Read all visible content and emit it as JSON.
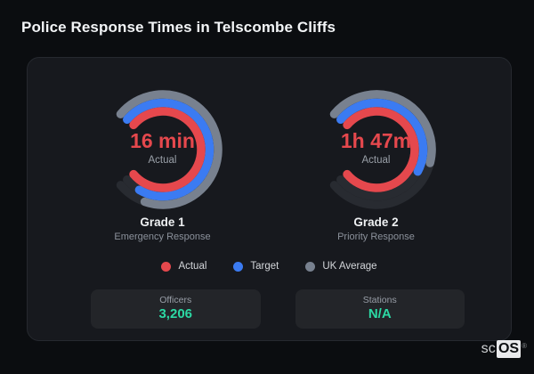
{
  "title": "Police Response Times in Telscombe Cliffs",
  "colors": {
    "page_bg": "#0b0d10",
    "card_bg": "#17191e",
    "track": "#282b31",
    "actual_red": "#e5484d",
    "target_blue": "#3b7bf2",
    "uk_avg_gray": "#78818f",
    "stat_teal": "#2cd9a4"
  },
  "chart_data": [
    {
      "type": "gauge",
      "label": "Grade 1",
      "sublabel": "Emergency Response",
      "center_value": "16 min",
      "center_caption": "Actual",
      "start_bearing_deg": -50,
      "range_deg": 280,
      "series": [
        {
          "name": "Actual",
          "color": "#e5484d",
          "fraction": 1.0,
          "radius": 43
        },
        {
          "name": "Target",
          "color": "#3b7bf2",
          "fraction": 0.93,
          "radius": 52.5
        },
        {
          "name": "UK Average",
          "color": "#78818f",
          "fraction": 0.89,
          "radius": 62
        }
      ]
    },
    {
      "type": "gauge",
      "label": "Grade 2",
      "sublabel": "Priority Response",
      "center_value": "1h 47m",
      "center_caption": "Actual",
      "start_bearing_deg": -50,
      "range_deg": 280,
      "series": [
        {
          "name": "Actual",
          "color": "#e5484d",
          "fraction": 1.0,
          "radius": 43
        },
        {
          "name": "Target",
          "color": "#3b7bf2",
          "fraction": 0.6,
          "radius": 52.5
        },
        {
          "name": "UK Average",
          "color": "#78818f",
          "fraction": 0.55,
          "radius": 62
        }
      ]
    }
  ],
  "legend": [
    {
      "label": "Actual",
      "color": "#e5484d"
    },
    {
      "label": "Target",
      "color": "#3b7bf2"
    },
    {
      "label": "UK Average",
      "color": "#78818f"
    }
  ],
  "stats": [
    {
      "label": "Officers",
      "value": "3,206"
    },
    {
      "label": "Stations",
      "value": "N/A"
    }
  ],
  "watermark": {
    "prefix": "sc",
    "boxed": "OS",
    "reg": "®"
  }
}
